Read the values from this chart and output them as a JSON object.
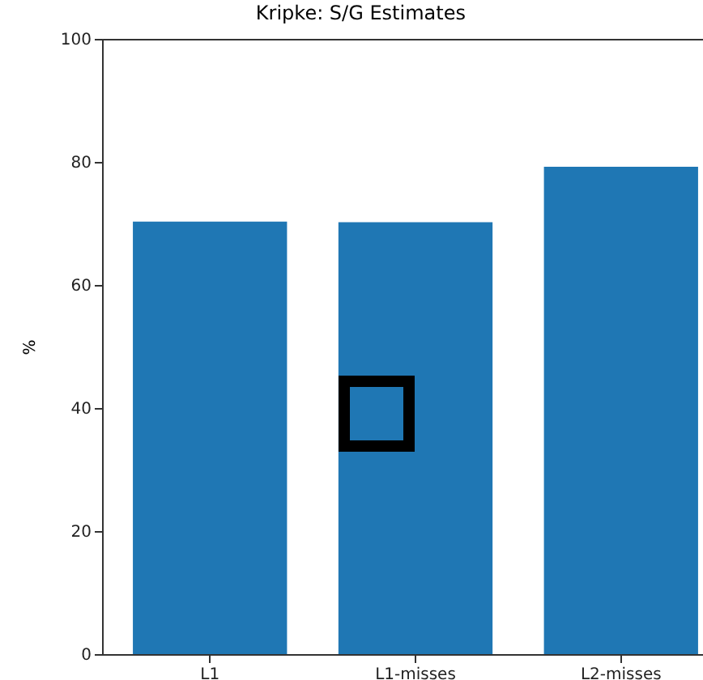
{
  "chart_data": {
    "type": "bar",
    "title": "Kripke: S/G Estimates",
    "ylabel": "%",
    "categories": [
      "L1",
      "L1-misses",
      "L2-misses"
    ],
    "values": [
      70.3,
      70.2,
      79.2
    ],
    "color": "#1f77b4",
    "ylim": [
      0,
      100
    ],
    "yticks": [
      0,
      20,
      40,
      60,
      80,
      100
    ],
    "grid": false
  }
}
